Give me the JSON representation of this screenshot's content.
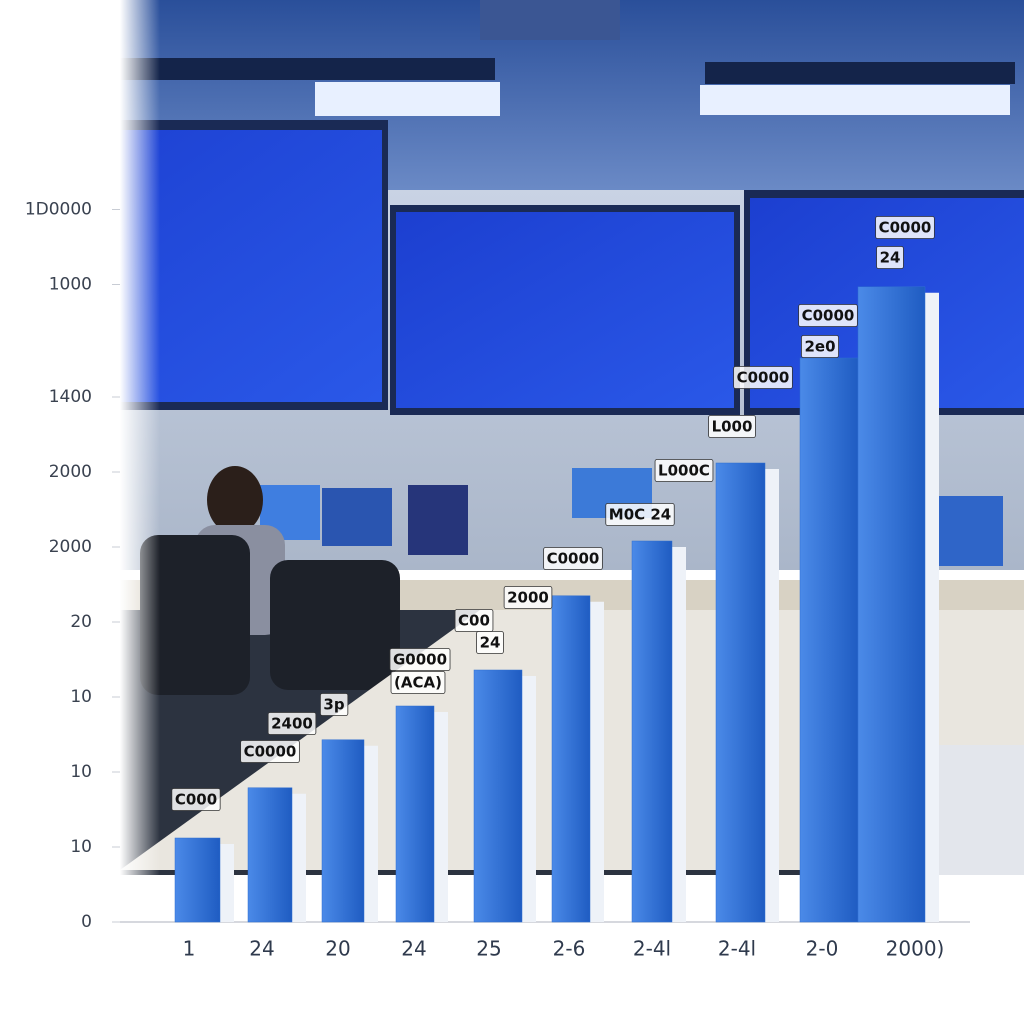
{
  "chart_data": {
    "type": "bar",
    "categories": [
      "1",
      "24",
      "20",
      "24",
      "25",
      "2-6",
      "2-4l",
      "2-4l",
      "2-0",
      "2000)"
    ],
    "values": [
      11.2,
      17.9,
      24.3,
      28.8,
      33.6,
      43.5,
      50.8,
      61.2,
      75.2,
      84.7
    ],
    "color": "#2f6fd0",
    "ylim": [
      0,
      100
    ],
    "yticks": [
      0,
      {
        "value": 10,
        "label": "10"
      },
      {
        "value": 20,
        "label": "10"
      },
      {
        "value": 30,
        "label": "10"
      },
      {
        "value": 40,
        "label": "20"
      },
      {
        "value": 50,
        "label": "2000"
      },
      {
        "value": 60,
        "label": "2000"
      },
      {
        "value": 70,
        "label": "1400"
      },
      {
        "value": 85,
        "label": "1000"
      },
      {
        "value": 95,
        "label": "1D0000"
      }
    ],
    "annotations": [
      "C000",
      "C0000",
      "2400",
      "3p",
      "G0000",
      "(ACA)",
      "C00",
      "24",
      "2000",
      "C0000",
      "M0C 24",
      "L000C",
      "L000",
      "C0000",
      "2e0",
      "C0000",
      "C0000",
      "24"
    ]
  }
}
